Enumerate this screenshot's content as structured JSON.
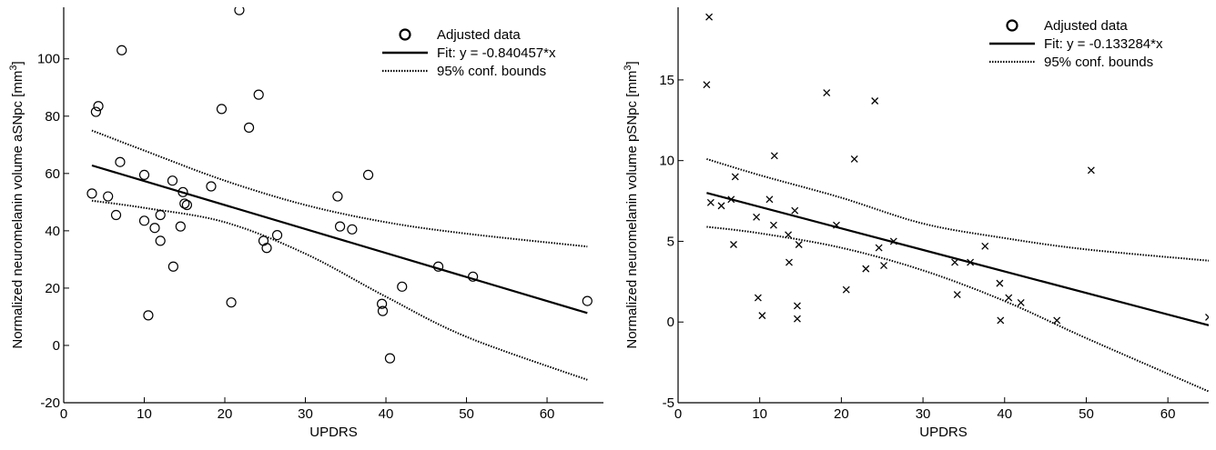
{
  "chart_data": [
    {
      "type": "scatter",
      "xlabel": "UPDRS",
      "ylabel": "Normalized neuromelanin volume aSNpc [mm³]",
      "xlim": [
        0,
        67
      ],
      "ylim": [
        -20,
        118
      ],
      "xticks": [
        0,
        10,
        20,
        30,
        40,
        50,
        60
      ],
      "yticks": [
        -20,
        0,
        20,
        40,
        60,
        80,
        100
      ],
      "marker": "circle",
      "legend": {
        "position": "top-right",
        "entries": [
          "Adjusted data",
          "Fit: y = -0.840457*x",
          "95% conf. bounds"
        ]
      },
      "series": [
        {
          "name": "Adjusted data",
          "points": [
            [
              3.5,
              53
            ],
            [
              4,
              81.5
            ],
            [
              4.3,
              83.5
            ],
            [
              5.5,
              52
            ],
            [
              6.5,
              45.5
            ],
            [
              7,
              64
            ],
            [
              7.2,
              103
            ],
            [
              10,
              59.5
            ],
            [
              10,
              43.5
            ],
            [
              10.5,
              10.5
            ],
            [
              11.3,
              41
            ],
            [
              12,
              45.5
            ],
            [
              12,
              36.5
            ],
            [
              13.5,
              57.5
            ],
            [
              13.6,
              27.5
            ],
            [
              14.5,
              41.5
            ],
            [
              14.8,
              53.5
            ],
            [
              15,
              49.5
            ],
            [
              15.3,
              49
            ],
            [
              18.3,
              55.5
            ],
            [
              19.6,
              82.5
            ],
            [
              20.8,
              15
            ],
            [
              21.8,
              117
            ],
            [
              23,
              76
            ],
            [
              24.2,
              87.5
            ],
            [
              24.8,
              36.5
            ],
            [
              25.2,
              34
            ],
            [
              26.5,
              38.5
            ],
            [
              34,
              52
            ],
            [
              34.3,
              41.5
            ],
            [
              35.8,
              40.5
            ],
            [
              37.8,
              59.5
            ],
            [
              39.5,
              14.5
            ],
            [
              39.6,
              12
            ],
            [
              40.5,
              -4.5
            ],
            [
              42,
              20.5
            ],
            [
              46.5,
              27.5
            ],
            [
              50.8,
              24
            ],
            [
              65,
              15.5
            ]
          ]
        },
        {
          "name": "Fit: y = -0.840457*x",
          "line": [
            [
              3.5,
              62.8
            ],
            [
              65,
              11.3
            ]
          ]
        },
        {
          "name": "95% conf. bounds",
          "upper": [
            [
              3.5,
              75
            ],
            [
              10,
              68
            ],
            [
              20,
              57.5
            ],
            [
              30,
              49
            ],
            [
              40,
              43
            ],
            [
              50,
              39
            ],
            [
              65,
              34.5
            ]
          ],
          "lower": [
            [
              3.5,
              50.5
            ],
            [
              10,
              48
            ],
            [
              20,
              43
            ],
            [
              30,
              32
            ],
            [
              40,
              17
            ],
            [
              50,
              3
            ],
            [
              65,
              -12
            ]
          ]
        }
      ]
    },
    {
      "type": "scatter",
      "xlabel": "UPDRS",
      "ylabel": "Normalized neuromelanin volume pSNpc [mm³]",
      "xlim": [
        0,
        65
      ],
      "ylim": [
        -5,
        19.5
      ],
      "xticks": [
        0,
        10,
        20,
        30,
        40,
        50,
        60
      ],
      "yticks": [
        -5,
        0,
        5,
        10,
        15
      ],
      "marker": "cross",
      "legend": {
        "position": "top-right",
        "entries": [
          "Adjusted data",
          "Fit: y = -0.133284*x",
          "95% conf. bounds"
        ]
      },
      "series": [
        {
          "name": "Adjusted data",
          "points": [
            [
              3.5,
              14.7
            ],
            [
              3.8,
              18.9
            ],
            [
              4,
              7.4
            ],
            [
              5.3,
              7.2
            ],
            [
              6.5,
              7.6
            ],
            [
              6.8,
              4.8
            ],
            [
              7,
              9
            ],
            [
              9.6,
              6.5
            ],
            [
              9.8,
              1.5
            ],
            [
              10.3,
              0.4
            ],
            [
              11.2,
              7.6
            ],
            [
              11.7,
              6
            ],
            [
              11.8,
              10.3
            ],
            [
              13.5,
              5.4
            ],
            [
              13.6,
              3.7
            ],
            [
              14.3,
              6.9
            ],
            [
              14.6,
              1
            ],
            [
              14.6,
              0.2
            ],
            [
              14.8,
              4.8
            ],
            [
              18.2,
              14.2
            ],
            [
              19.4,
              6
            ],
            [
              20.6,
              2
            ],
            [
              21.6,
              10.1
            ],
            [
              23,
              3.3
            ],
            [
              24.1,
              13.7
            ],
            [
              24.6,
              4.6
            ],
            [
              25.2,
              3.5
            ],
            [
              26.4,
              5
            ],
            [
              33.9,
              3.7
            ],
            [
              34.2,
              1.7
            ],
            [
              35.8,
              3.7
            ],
            [
              37.6,
              4.7
            ],
            [
              39.4,
              2.4
            ],
            [
              39.5,
              0.1
            ],
            [
              40.5,
              1.5
            ],
            [
              42,
              1.2
            ],
            [
              46.4,
              0.1
            ],
            [
              50.6,
              9.4
            ],
            [
              65,
              0.3
            ]
          ]
        },
        {
          "name": "Fit: y = -0.133284*x",
          "line": [
            [
              3.5,
              8
            ],
            [
              65,
              -0.2
            ]
          ]
        },
        {
          "name": "95% conf. bounds",
          "upper": [
            [
              3.5,
              10.1
            ],
            [
              10,
              9.1
            ],
            [
              20,
              7.7
            ],
            [
              30,
              6.1
            ],
            [
              40,
              5.2
            ],
            [
              50,
              4.5
            ],
            [
              65,
              3.8
            ]
          ],
          "lower": [
            [
              3.5,
              5.9
            ],
            [
              10,
              5.5
            ],
            [
              20,
              4.6
            ],
            [
              30,
              3.2
            ],
            [
              40,
              1.3
            ],
            [
              50,
              -1
            ],
            [
              65,
              -4.3
            ]
          ]
        }
      ]
    }
  ]
}
